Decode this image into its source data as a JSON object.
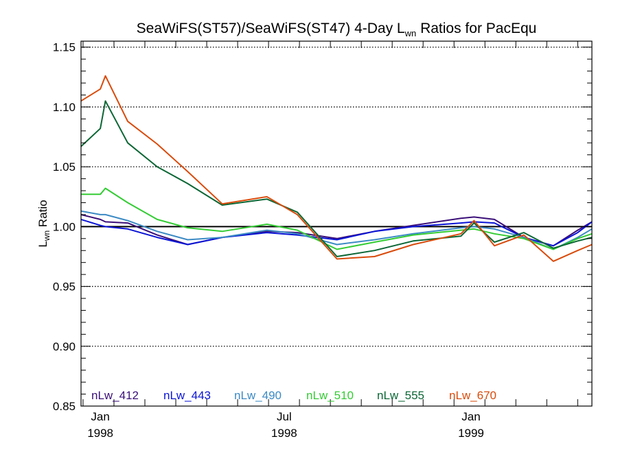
{
  "chart_data": {
    "type": "line",
    "title": {
      "main": "SeaWiFS(ST57)/SeaWiFS(ST47) 4-Day L",
      "sub": "wn",
      "rest": " Ratios for PacEqu"
    },
    "ylabel": {
      "main": "L",
      "sub": "wn",
      "rest": " Ratio"
    },
    "xlabel": "",
    "ylim": [
      0.85,
      1.155
    ],
    "xlim": [
      "1997-12-13",
      "1999-04-30"
    ],
    "yticks": [
      0.85,
      0.9,
      0.95,
      1.0,
      1.05,
      1.1,
      1.15
    ],
    "ytick_labels": [
      "0.85",
      "0.90",
      "0.95",
      "1.00",
      "1.05",
      "1.10",
      "1.15"
    ],
    "xticks": [
      {
        "date": "1998-01-01",
        "label1": "Jan",
        "label2": "1998"
      },
      {
        "date": "1998-07-01",
        "label1": "Jul",
        "label2": "1998"
      },
      {
        "date": "1999-01-01",
        "label1": "Jan",
        "label2": "1999"
      }
    ],
    "reference_line": 1.0,
    "grid": "dotted horizontal",
    "x": [
      "1997-12-13",
      "1998-01-01",
      "1998-01-06",
      "1998-01-28",
      "1998-02-26",
      "1998-03-28",
      "1998-05-01",
      "1998-06-14",
      "1998-07-14",
      "1998-08-22",
      "1998-09-28",
      "1998-11-05",
      "1998-12-22",
      "1999-01-04",
      "1999-01-24",
      "1999-02-22",
      "1999-03-23",
      "1999-04-16",
      "1999-04-30"
    ],
    "series": [
      {
        "name": "nLw_412",
        "color": "#3a0e78",
        "values": [
          1.01,
          1.006,
          1.004,
          1.003,
          0.993,
          0.985,
          0.991,
          0.996,
          0.995,
          0.99,
          0.996,
          1.001,
          1.007,
          1.008,
          1.006,
          0.991,
          0.984,
          0.997,
          1.004
        ]
      },
      {
        "name": "nLw_443",
        "color": "#0a14d6",
        "values": [
          1.006,
          1.001,
          1.0,
          0.998,
          0.991,
          0.985,
          0.991,
          0.995,
          0.993,
          0.989,
          0.996,
          1.0,
          1.003,
          1.004,
          1.003,
          0.991,
          0.984,
          0.995,
          1.004
        ]
      },
      {
        "name": "nLw_490",
        "color": "#3b8ac4",
        "values": [
          1.013,
          1.01,
          1.01,
          1.005,
          0.996,
          0.989,
          0.991,
          0.997,
          0.994,
          0.985,
          0.989,
          0.994,
          0.999,
          1.0,
          0.998,
          0.991,
          0.981,
          0.991,
          0.998
        ]
      },
      {
        "name": "nLw_510",
        "color": "#33cc33",
        "values": [
          1.027,
          1.027,
          1.032,
          1.02,
          1.006,
          0.999,
          0.996,
          1.002,
          0.997,
          0.981,
          0.987,
          0.993,
          0.997,
          0.998,
          0.994,
          0.99,
          0.981,
          0.99,
          0.994
        ]
      },
      {
        "name": "nLw_555",
        "color": "#0a6634",
        "values": [
          1.067,
          1.082,
          1.105,
          1.07,
          1.05,
          1.036,
          1.018,
          1.023,
          1.012,
          0.975,
          0.98,
          0.988,
          0.992,
          1.003,
          0.987,
          0.995,
          0.982,
          0.988,
          0.991
        ]
      },
      {
        "name": "nLw_670",
        "color": "#d94a0a",
        "values": [
          1.105,
          1.115,
          1.126,
          1.088,
          1.069,
          1.046,
          1.019,
          1.025,
          1.01,
          0.973,
          0.975,
          0.985,
          0.994,
          1.005,
          0.984,
          0.993,
          0.971,
          0.98,
          0.985
        ]
      }
    ]
  }
}
